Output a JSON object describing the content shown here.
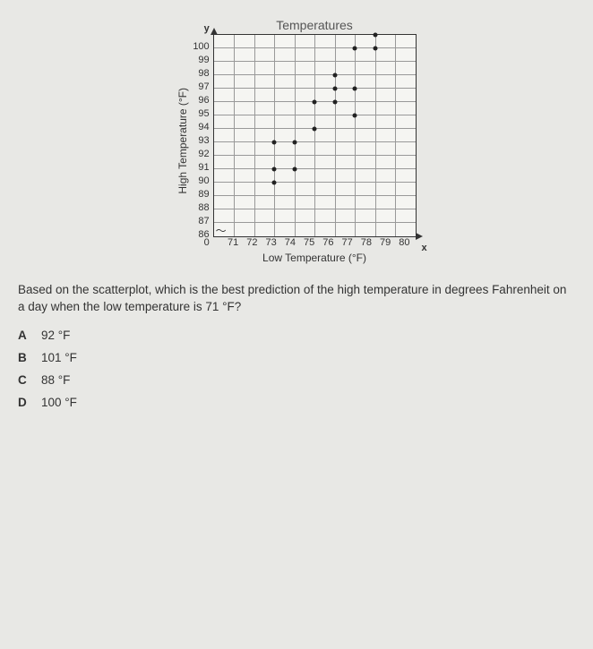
{
  "chart": {
    "title": "Temperatures",
    "y_label": "High Temperature (°F)",
    "x_label": "Low Temperature (°F)",
    "y_axis_symbol": "y",
    "x_axis_symbol": "x",
    "origin_label": "0",
    "y_ticks": [
      "100",
      "99",
      "98",
      "97",
      "96",
      "95",
      "94",
      "93",
      "92",
      "91",
      "90",
      "89",
      "88",
      "87",
      "86"
    ],
    "x_ticks": [
      "71",
      "72",
      "73",
      "74",
      "75",
      "76",
      "77",
      "78",
      "79",
      "80"
    ],
    "y_min": 86,
    "y_max": 101,
    "y_step": 1,
    "x_min": 70,
    "x_max": 80,
    "x_step": 1,
    "grid_color": "#999999",
    "point_color": "#222222",
    "background": "#f5f5f2",
    "points": [
      {
        "x": 73,
        "y": 90
      },
      {
        "x": 73,
        "y": 91
      },
      {
        "x": 73,
        "y": 93
      },
      {
        "x": 74,
        "y": 91
      },
      {
        "x": 74,
        "y": 93
      },
      {
        "x": 75,
        "y": 94
      },
      {
        "x": 75,
        "y": 96
      },
      {
        "x": 76,
        "y": 96
      },
      {
        "x": 76,
        "y": 97
      },
      {
        "x": 76,
        "y": 98
      },
      {
        "x": 77,
        "y": 95
      },
      {
        "x": 77,
        "y": 97
      },
      {
        "x": 77,
        "y": 100
      },
      {
        "x": 78,
        "y": 100
      },
      {
        "x": 78,
        "y": 101
      }
    ]
  },
  "question": "Based on the scatterplot, which is the best prediction of the high temperature in degrees Fahrenheit on a day when the low temperature is 71 °F?",
  "options": [
    {
      "letter": "A",
      "text": "92 °F"
    },
    {
      "letter": "B",
      "text": "101 °F"
    },
    {
      "letter": "C",
      "text": "88 °F"
    },
    {
      "letter": "D",
      "text": "100 °F"
    }
  ]
}
